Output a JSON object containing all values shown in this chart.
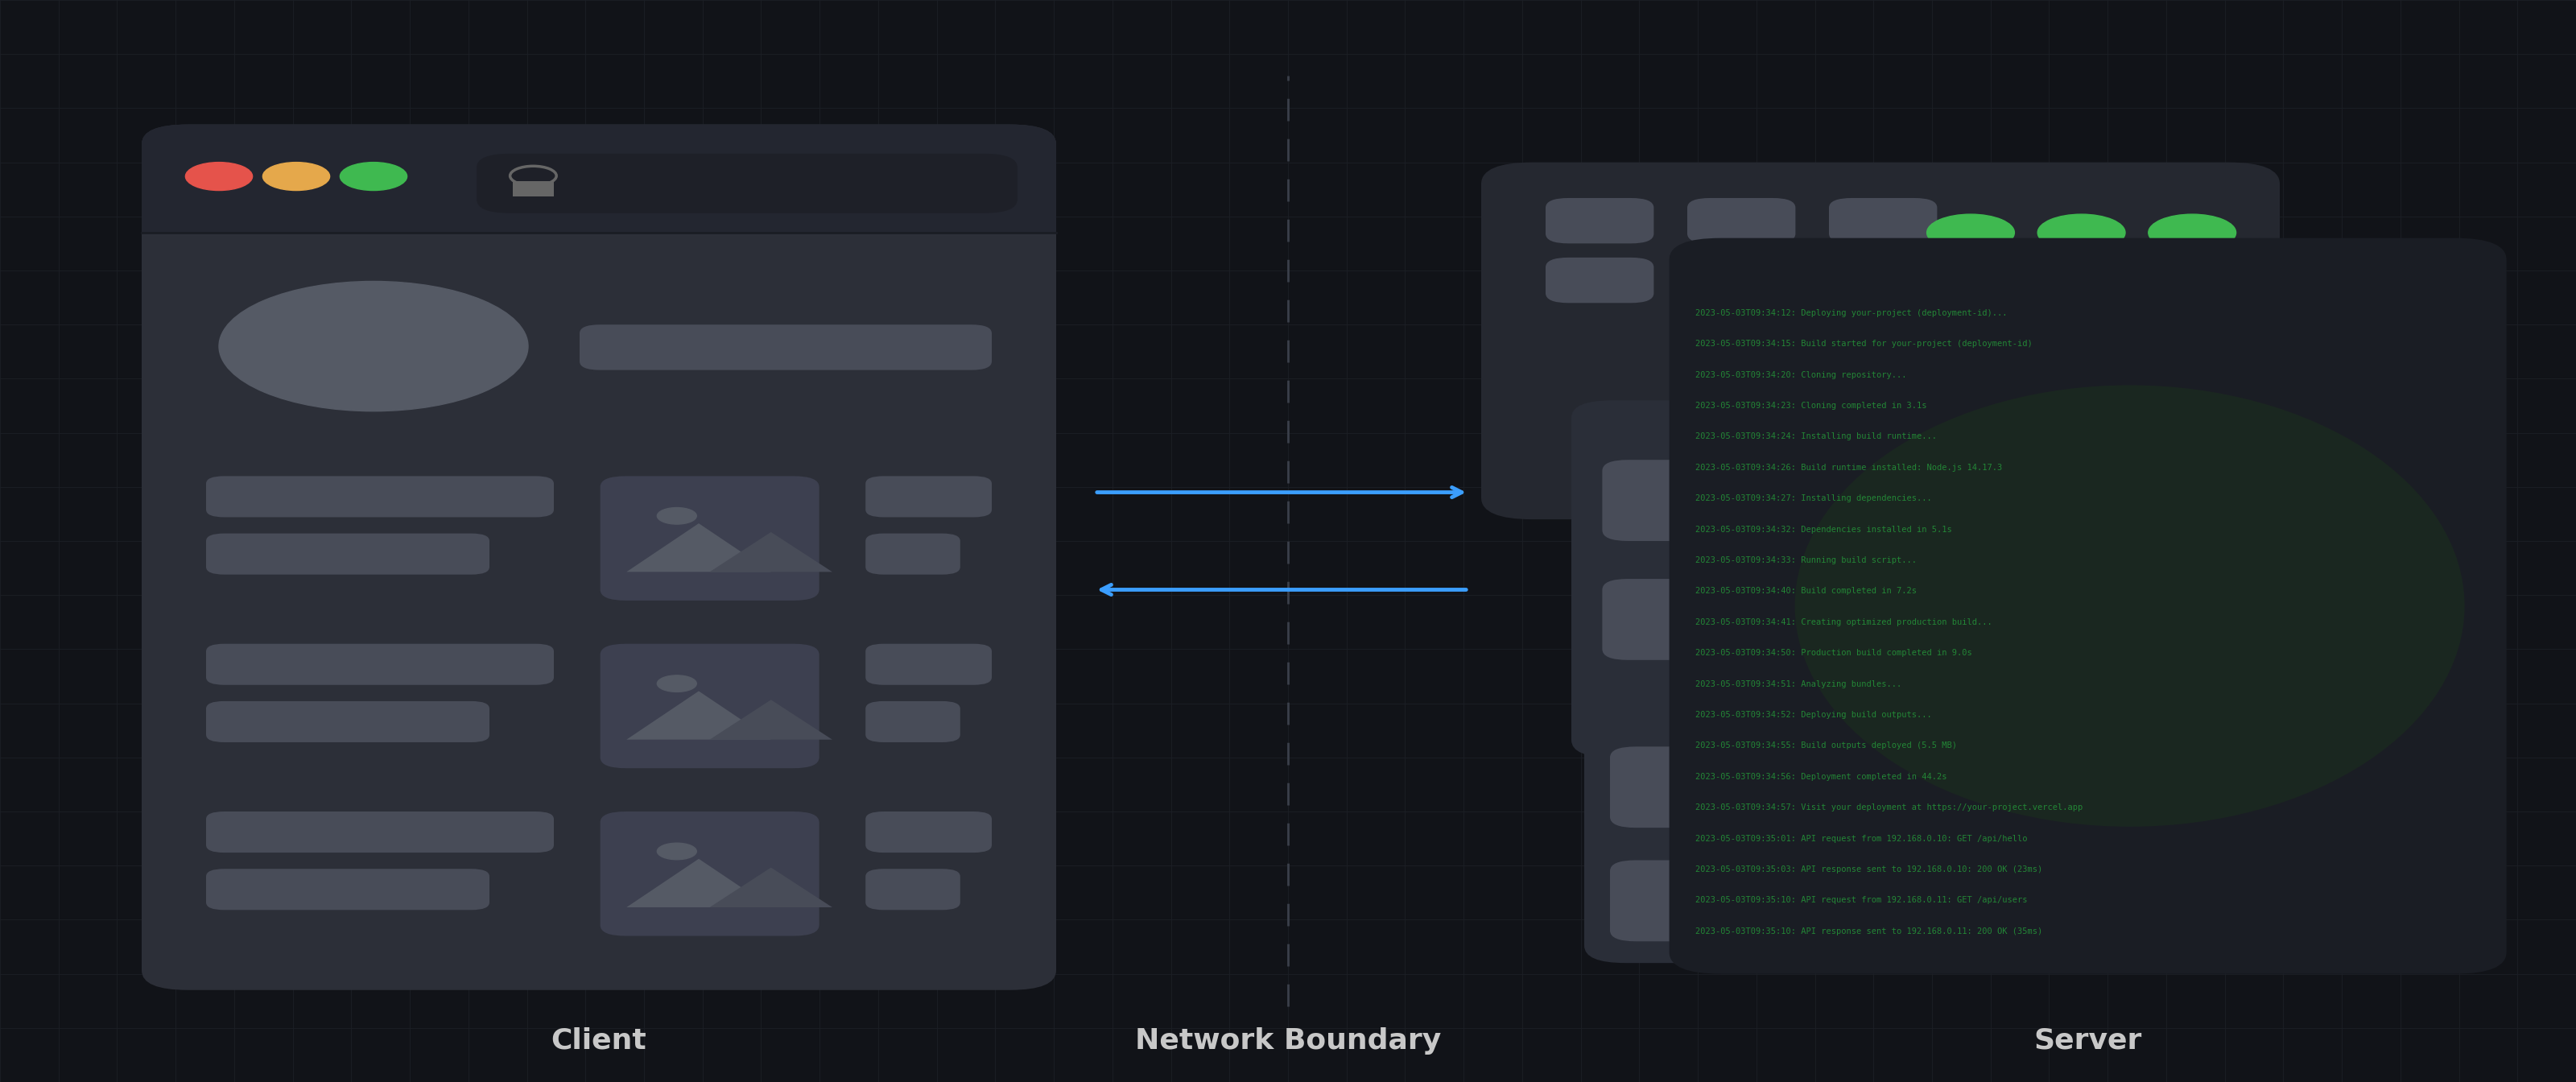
{
  "bg_color": "#111318",
  "grid_color": "#1c1f26",
  "fig_width": 32.0,
  "fig_height": 13.44,
  "client_label": "Client",
  "network_label": "Network Boundary",
  "server_label": "Server",
  "browser_dot_red": "#e5534b",
  "browser_dot_yellow": "#e5a84b",
  "browser_dot_green": "#3fb950",
  "arrow_color": "#3b9eff",
  "dashed_line_color": "#3a3f4a",
  "log_lines": [
    "2023-05-03T09:34:12: Deploying your-project (deployment-id)...",
    "2023-05-03T09:34:15: Build started for your-project (deployment-id)",
    "2023-05-03T09:34:20: Cloning repository...",
    "2023-05-03T09:34:23: Cloning completed in 3.1s",
    "2023-05-03T09:34:24: Installing build runtime...",
    "2023-05-03T09:34:26: Build runtime installed: Node.js 14.17.3",
    "2023-05-03T09:34:27: Installing dependencies...",
    "2023-05-03T09:34:32: Dependencies installed in 5.1s",
    "2023-05-03T09:34:33: Running build script...",
    "2023-05-03T09:34:40: Build completed in 7.2s",
    "2023-05-03T09:34:41: Creating optimized production build...",
    "2023-05-03T09:34:50: Production build completed in 9.0s",
    "2023-05-03T09:34:51: Analyzing bundles...",
    "2023-05-03T09:34:52: Deploying build outputs...",
    "2023-05-03T09:34:55: Build outputs deployed (5.5 MB)",
    "2023-05-03T09:34:56: Deployment completed in 44.2s",
    "2023-05-03T09:34:57: Visit your deployment at https://your-project.vercel.app",
    "2023-05-03T09:35:01: API request from 192.168.0.10: GET /api/hello",
    "2023-05-03T09:35:03: API response sent to 192.168.0.10: 200 OK (23ms)",
    "2023-05-03T09:35:10: API request from 192.168.0.11: GET /api/users",
    "2023-05-03T09:35:10: API response sent to 192.168.0.11: 200 OK (35ms)"
  ],
  "log_color": "#238636",
  "log_fontsize": 7.5
}
